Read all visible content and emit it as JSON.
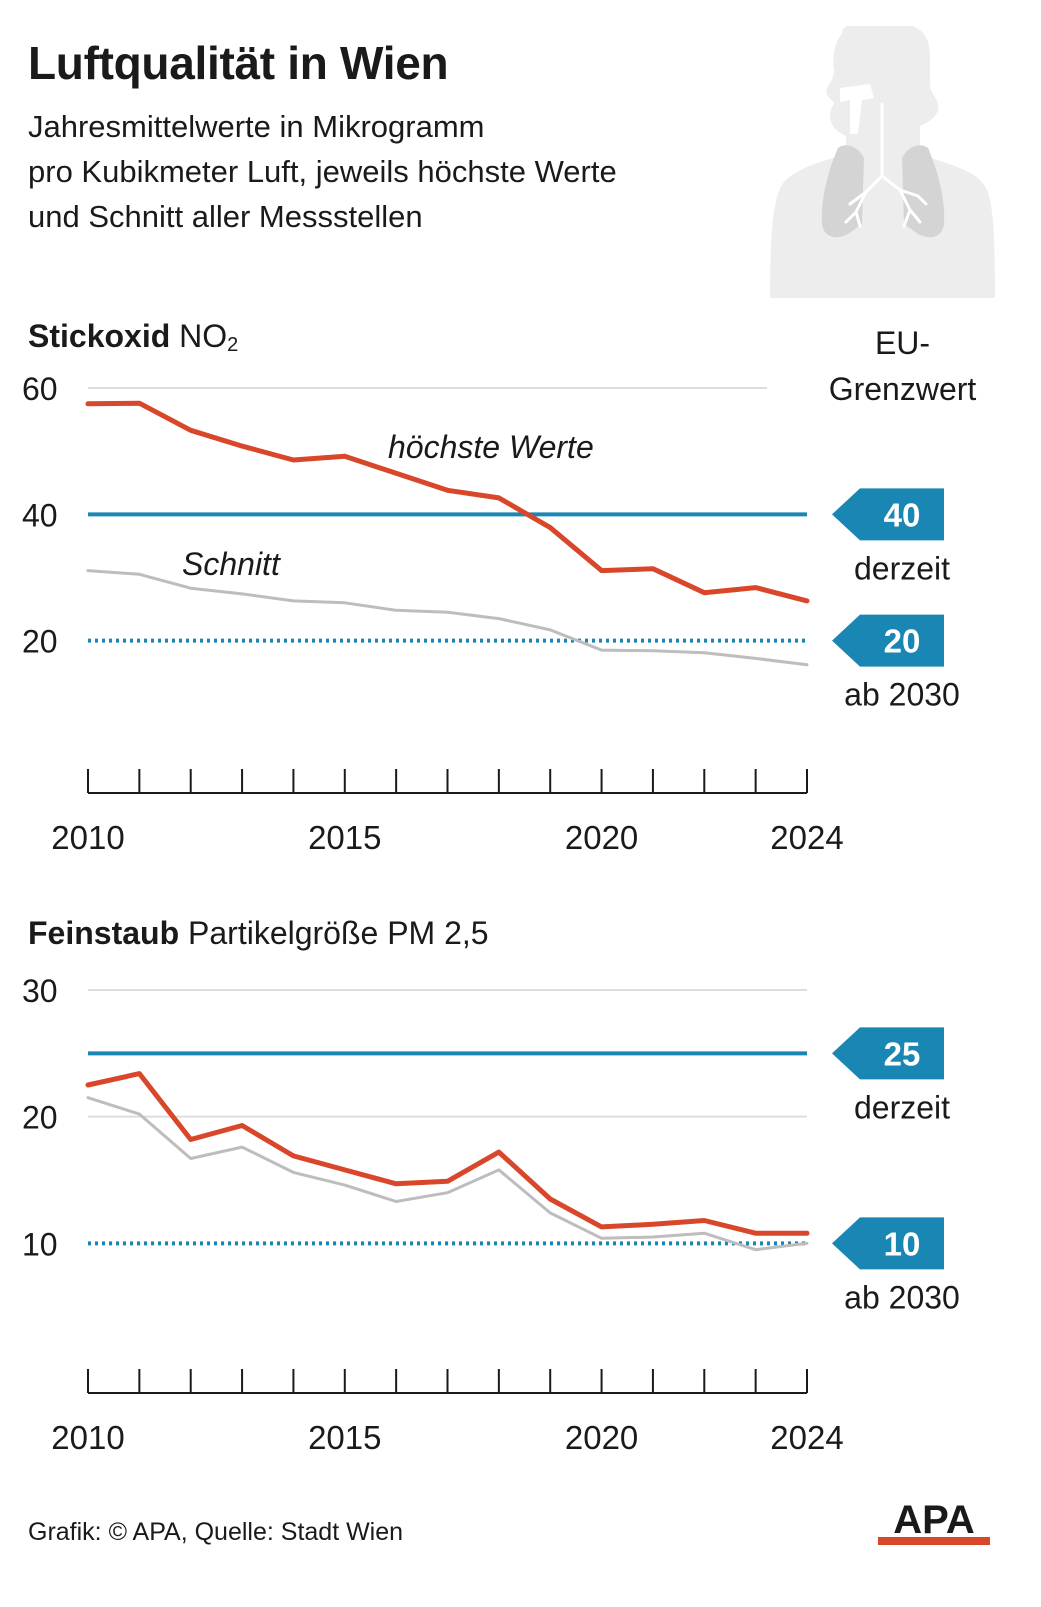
{
  "header": {
    "title": "Luftqualität in Wien",
    "subtitle_lines": [
      "Jahresmittelwerte in Mikrogramm",
      "pro Kubikmeter Luft, jeweils höchste Werte",
      "und Schnitt aller Messstellen"
    ],
    "eu_label_lines": [
      "EU-",
      "Grenzwert"
    ]
  },
  "colors": {
    "highest": "#d9472b",
    "average": "#bdbdbd",
    "limit": "#1a86b4",
    "grid": "#dddddd",
    "text": "#1a1a1a"
  },
  "chart_data": [
    {
      "type": "line",
      "title_bold": "Stickoxid",
      "title_rest": "NO",
      "title_sub": "2",
      "x": [
        2010,
        2011,
        2012,
        2013,
        2014,
        2015,
        2016,
        2017,
        2018,
        2019,
        2020,
        2021,
        2022,
        2023,
        2024
      ],
      "xticks": [
        2010,
        2015,
        2020,
        2024
      ],
      "yticks": [
        60,
        40,
        20
      ],
      "ylim": [
        0,
        60
      ],
      "series": [
        {
          "name": "höchste Werte",
          "color": "#d9472b",
          "values": [
            57.5,
            57.6,
            53.3,
            50.8,
            48.6,
            49.2,
            46.5,
            43.8,
            42.6,
            37.9,
            31.1,
            31.4,
            27.6,
            28.4,
            26.3
          ]
        },
        {
          "name": "Schnitt",
          "color": "#bdbdbd",
          "values": [
            31.1,
            30.5,
            28.3,
            27.4,
            26.3,
            26.0,
            24.8,
            24.5,
            23.5,
            21.7,
            18.5,
            18.4,
            18.1,
            17.2,
            16.2
          ]
        }
      ],
      "limits": [
        {
          "value": 40,
          "label": "40",
          "caption": "derzeit",
          "style": "solid"
        },
        {
          "value": 20,
          "label": "20",
          "caption": "ab 2030",
          "style": "dotted"
        }
      ]
    },
    {
      "type": "line",
      "title_bold": "Feinstaub",
      "title_rest": "Partikelgröße PM 2,5",
      "title_sub": "",
      "x": [
        2010,
        2011,
        2012,
        2013,
        2014,
        2015,
        2016,
        2017,
        2018,
        2019,
        2020,
        2021,
        2022,
        2023,
        2024
      ],
      "xticks": [
        2010,
        2015,
        2020,
        2024
      ],
      "yticks": [
        30,
        20,
        10
      ],
      "ylim": [
        0,
        30
      ],
      "series": [
        {
          "name": "",
          "color": "#d9472b",
          "values": [
            22.5,
            23.4,
            18.2,
            19.3,
            16.9,
            15.8,
            14.7,
            14.9,
            17.2,
            13.5,
            11.3,
            11.5,
            11.8,
            10.8,
            10.8
          ]
        },
        {
          "name": "",
          "color": "#bdbdbd",
          "values": [
            21.5,
            20.2,
            16.7,
            17.6,
            15.6,
            14.6,
            13.3,
            14.0,
            15.8,
            12.4,
            10.4,
            10.5,
            10.8,
            9.5,
            10.0
          ]
        }
      ],
      "limits": [
        {
          "value": 25,
          "label": "25",
          "caption": "derzeit",
          "style": "solid"
        },
        {
          "value": 10,
          "label": "10",
          "caption": "ab 2030",
          "style": "dotted"
        }
      ]
    }
  ],
  "footer": {
    "source": "Grafik: © APA, Quelle: Stadt Wien",
    "logo_text": "APA"
  }
}
